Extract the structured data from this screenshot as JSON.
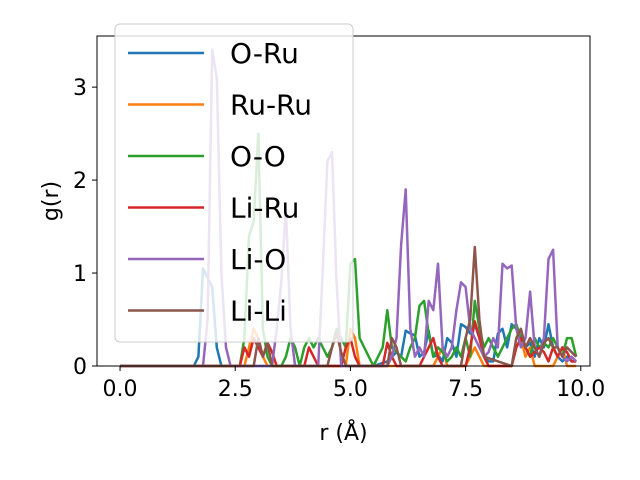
{
  "chart_data": {
    "type": "line",
    "xlabel": "r (Å)",
    "ylabel": "g(r)",
    "xlim": [
      -0.5,
      10.2
    ],
    "ylim": [
      0,
      3.55
    ],
    "xticks": [
      0.0,
      2.5,
      5.0,
      7.5,
      10.0
    ],
    "xtick_labels": [
      "0.0",
      "2.5",
      "5.0",
      "7.5",
      "10.0"
    ],
    "yticks": [
      0,
      1,
      2,
      3
    ],
    "ytick_labels": [
      "0",
      "1",
      "2",
      "3"
    ],
    "grid": false,
    "legend_position": "upper-left",
    "series": [
      {
        "name": "O-Ru",
        "color": "#1f77b4",
        "x": [
          0,
          1.6,
          1.7,
          1.8,
          1.9,
          2.0,
          2.1,
          2.2,
          5.0,
          5.5,
          5.8,
          6.0,
          6.1,
          6.2,
          6.3,
          6.4,
          6.5,
          6.6,
          6.7,
          6.8,
          6.9,
          7.0,
          7.1,
          7.2,
          7.3,
          7.4,
          7.5,
          7.6,
          7.7,
          7.8,
          7.9,
          8.0,
          8.1,
          8.2,
          8.3,
          8.4,
          8.5,
          8.6,
          8.7,
          8.8,
          8.9,
          9.0,
          9.1,
          9.2,
          9.3,
          9.4,
          9.5,
          9.6,
          9.7,
          9.8,
          9.9
        ],
        "y": [
          0,
          0,
          0.1,
          1.05,
          0.95,
          0.85,
          0.2,
          0,
          0,
          0,
          0.05,
          0.15,
          0.1,
          0.38,
          0.35,
          0.33,
          0.1,
          0.15,
          0.38,
          0.1,
          0.12,
          0.05,
          0.3,
          0.25,
          0.1,
          0.45,
          0.42,
          0.35,
          0.45,
          0.3,
          0.1,
          0.05,
          0.05,
          0.35,
          0.4,
          0.2,
          0.45,
          0.4,
          0.3,
          0.2,
          0.25,
          0.1,
          0.3,
          0.2,
          0.45,
          0.2,
          0.1,
          0.05,
          0.1,
          0.05,
          0.05
        ]
      },
      {
        "name": "Ru-Ru",
        "color": "#ff7f0e",
        "x": [
          0,
          2.7,
          2.8,
          2.9,
          3.0,
          3.1,
          3.2,
          4.9,
          5.0,
          5.1,
          5.2,
          6.8,
          6.9,
          7.0,
          7.1,
          7.5,
          7.6,
          7.7,
          7.8,
          7.9,
          8.5,
          8.6,
          8.7,
          8.8,
          8.9,
          9.0,
          9.4,
          9.5,
          9.6,
          9.7,
          9.9
        ],
        "y": [
          0,
          0,
          0.2,
          0.4,
          0.3,
          0.1,
          0,
          0,
          0.4,
          0.3,
          0,
          0,
          0.1,
          0.2,
          0,
          0,
          0.1,
          0.2,
          0.1,
          0,
          0,
          0.2,
          0.3,
          0.1,
          0.2,
          0,
          0,
          0.1,
          0.2,
          0,
          0
        ]
      },
      {
        "name": "O-O",
        "color": "#2ca02c",
        "x": [
          0,
          2.6,
          2.7,
          2.8,
          2.9,
          3.0,
          3.1,
          3.2,
          3.3,
          3.5,
          3.6,
          3.7,
          3.8,
          3.9,
          4.0,
          4.1,
          4.2,
          4.3,
          4.4,
          4.5,
          4.6,
          4.7,
          4.8,
          4.9,
          5.0,
          5.1,
          5.2,
          5.5,
          5.6,
          5.7,
          5.8,
          5.9,
          6.0,
          6.1,
          6.2,
          6.3,
          6.4,
          6.5,
          6.6,
          6.7,
          6.8,
          6.9,
          7.0,
          7.1,
          7.2,
          7.3,
          7.4,
          7.5,
          7.6,
          7.7,
          7.8,
          7.9,
          8.0,
          8.1,
          8.2,
          8.3,
          8.4,
          8.5,
          8.6,
          8.7,
          8.8,
          8.9,
          9.0,
          9.1,
          9.2,
          9.3,
          9.4,
          9.5,
          9.6,
          9.7,
          9.8,
          9.9
        ],
        "y": [
          0,
          0,
          0.3,
          1.4,
          1.55,
          2.5,
          0.4,
          0.1,
          0,
          0,
          0.1,
          0.3,
          0.2,
          0,
          0.2,
          0.3,
          0.2,
          0.3,
          0.2,
          0.1,
          0.2,
          0.4,
          0.3,
          0.2,
          1.1,
          1.15,
          0.3,
          0,
          0.1,
          0.2,
          0.6,
          0.2,
          0.15,
          0.1,
          0.05,
          0.2,
          0.3,
          0.65,
          0.7,
          0.35,
          0.1,
          0.2,
          0.15,
          0.05,
          0.1,
          0.2,
          0.1,
          0.3,
          0.1,
          0.7,
          0.4,
          0.2,
          0.3,
          0.2,
          0.1,
          0.2,
          0.3,
          0.4,
          0.45,
          0.3,
          0.2,
          0.1,
          0.3,
          0.2,
          0.25,
          0.2,
          0.3,
          0.2,
          0.1,
          0.3,
          0.3,
          0.1
        ]
      },
      {
        "name": "Li-Ru",
        "color": "#d62728",
        "x": [
          0,
          2.6,
          2.7,
          2.8,
          2.9,
          3.0,
          3.1,
          3.2,
          3.3,
          3.4,
          4.0,
          4.1,
          4.2,
          4.3,
          4.8,
          4.9,
          5.0,
          5.1,
          5.2,
          5.7,
          5.8,
          5.9,
          6.0,
          6.5,
          6.6,
          6.7,
          6.8,
          6.9,
          7.0,
          7.5,
          7.6,
          7.7,
          7.8,
          7.9,
          8.0,
          8.5,
          8.6,
          8.7,
          8.8,
          8.9,
          9.0,
          9.1,
          9.2,
          9.3,
          9.4,
          9.5,
          9.6,
          9.7,
          9.8,
          9.9
        ],
        "y": [
          0,
          0,
          0.2,
          0.1,
          0.3,
          0.2,
          0.1,
          0.25,
          0.15,
          0,
          0,
          0.2,
          0.1,
          0,
          0,
          0.2,
          0.3,
          0.1,
          0,
          0,
          0.25,
          0.1,
          0,
          0,
          0.1,
          0.2,
          0.3,
          0.1,
          0,
          0,
          0.2,
          0.48,
          0.3,
          0.1,
          0,
          0,
          0.2,
          0.3,
          0.2,
          0.1,
          0.15,
          0.2,
          0.15,
          0.05,
          0.2,
          0.1,
          0.2,
          0.15,
          0.05,
          0.05
        ]
      },
      {
        "name": "Li-O",
        "color": "#9467bd",
        "x": [
          0,
          1.8,
          1.9,
          2.0,
          2.1,
          2.2,
          2.3,
          2.4,
          3.3,
          3.4,
          3.5,
          3.6,
          3.7,
          3.8,
          4.3,
          4.4,
          4.5,
          4.6,
          4.7,
          4.8,
          5.8,
          5.9,
          6.0,
          6.1,
          6.2,
          6.3,
          6.4,
          6.5,
          6.6,
          6.7,
          6.8,
          6.9,
          7.0,
          7.1,
          7.2,
          7.3,
          7.4,
          7.5,
          7.6,
          7.7,
          7.8,
          7.9,
          8.0,
          8.1,
          8.2,
          8.3,
          8.4,
          8.5,
          8.6,
          8.7,
          8.8,
          8.9,
          9.0,
          9.1,
          9.2,
          9.3,
          9.4,
          9.5,
          9.6,
          9.7,
          9.8,
          9.9
        ],
        "y": [
          0,
          0,
          0.5,
          3.4,
          3.1,
          1.0,
          0.2,
          0,
          0,
          0.4,
          0.9,
          1.7,
          0.4,
          0,
          0,
          1.05,
          2.2,
          2.3,
          0.9,
          0,
          0,
          0.1,
          0.3,
          1.3,
          1.9,
          0.4,
          0.1,
          0.2,
          0.1,
          0.7,
          0.6,
          1.1,
          0.2,
          0.1,
          0.2,
          0.6,
          0.9,
          0.85,
          0.4,
          0.3,
          0.2,
          0.1,
          0.15,
          0.3,
          0.2,
          1.1,
          1.05,
          1.08,
          0.4,
          0.2,
          0.3,
          0.8,
          0.2,
          0.1,
          0.3,
          1.15,
          1.25,
          0.2,
          0.1,
          0.05,
          0.1,
          0.05
        ]
      },
      {
        "name": "Li-Li",
        "color": "#8c564b",
        "x": [
          0,
          2.9,
          3.0,
          3.1,
          3.2,
          3.3,
          4.5,
          4.6,
          4.7,
          4.8,
          4.9,
          5.8,
          5.9,
          6.0,
          6.1,
          7.4,
          7.5,
          7.6,
          7.7,
          7.8,
          7.9,
          8.5,
          8.6,
          8.7,
          8.8,
          8.9,
          9.0,
          9.1,
          9.2,
          9.3,
          9.4,
          9.5,
          9.6,
          9.7,
          9.8,
          9.9
        ],
        "y": [
          0,
          0,
          0.3,
          0.1,
          0.25,
          0,
          0,
          0.2,
          0.35,
          0.15,
          0,
          0,
          0.3,
          0.2,
          0,
          0,
          0.3,
          0.5,
          1.28,
          0.5,
          0.1,
          0,
          0.3,
          0.4,
          0.2,
          0.3,
          0.2,
          0.1,
          0.25,
          0.3,
          0.2,
          0.2,
          0.1,
          0.2,
          0.15,
          0.1
        ]
      }
    ]
  }
}
